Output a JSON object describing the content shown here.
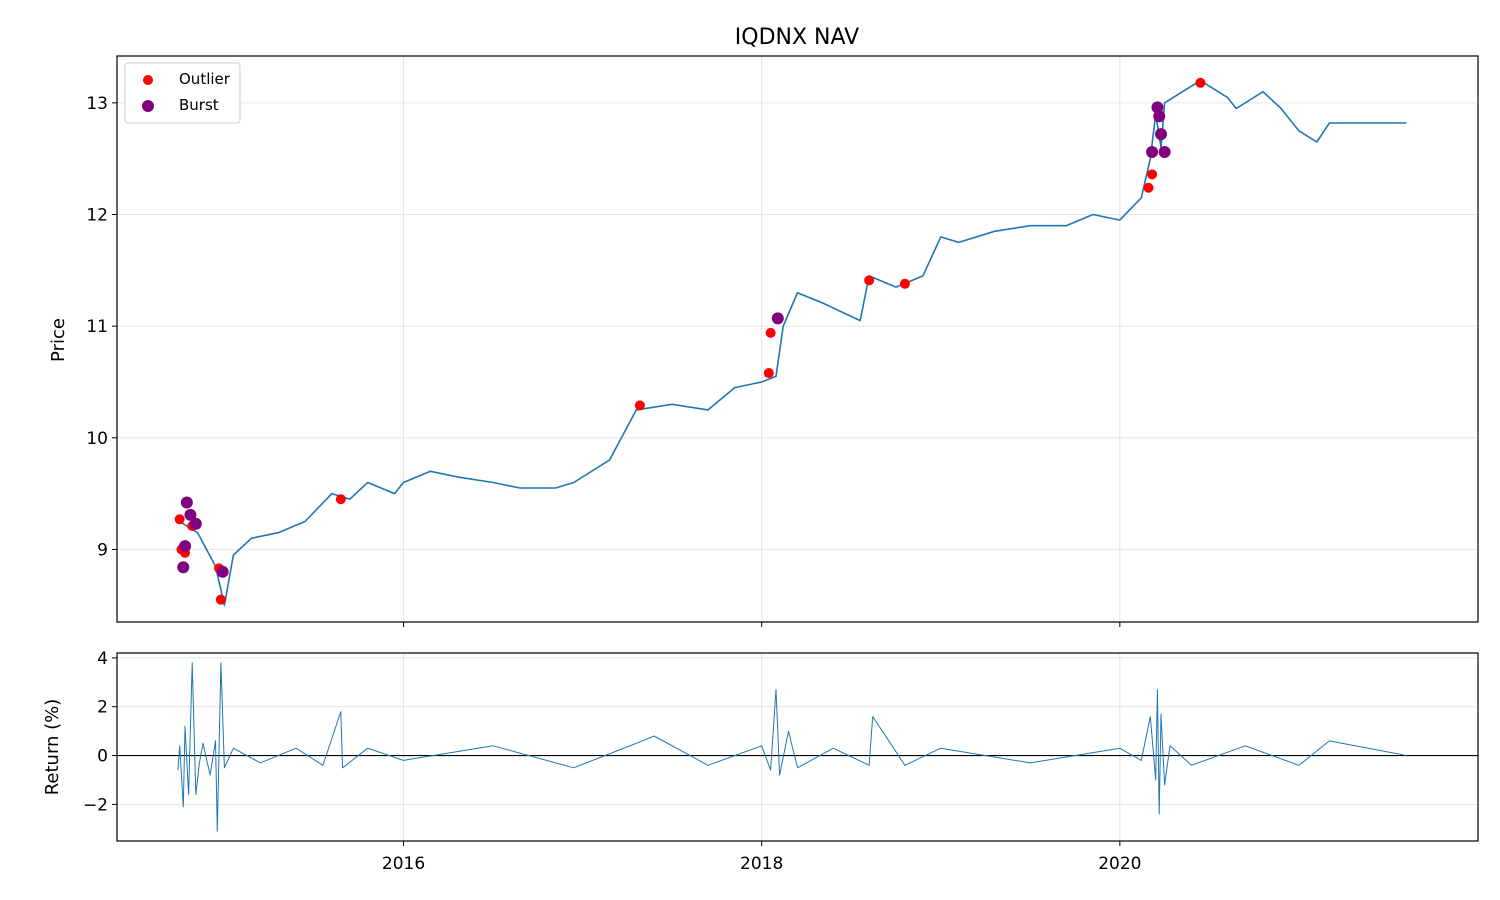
{
  "chart_data": [
    {
      "type": "line",
      "title": "IQDNX NAV",
      "xlabel": "",
      "ylabel": "Price",
      "xlim": [
        2014.4,
        2022.0
      ],
      "ylim": [
        8.35,
        13.42
      ],
      "grid": true,
      "legend_position": "top-left",
      "x_ticks": [
        2016,
        2018,
        2020
      ],
      "x_tick_labels": [
        "",
        "",
        ""
      ],
      "y_ticks": [
        9,
        10,
        11,
        12,
        13
      ],
      "y_tick_labels": [
        "9",
        "10",
        "11",
        "12",
        "13"
      ],
      "series": [
        {
          "name": "",
          "color": "#1f77b4",
          "x": [
            2014.75,
            2014.8,
            2014.85,
            2014.9,
            2014.95,
            2015.0,
            2015.05,
            2015.15,
            2015.3,
            2015.45,
            2015.6,
            2015.7,
            2015.8,
            2015.95,
            2016.0,
            2016.15,
            2016.3,
            2016.5,
            2016.65,
            2016.85,
            2016.95,
            2017.15,
            2017.3,
            2017.5,
            2017.7,
            2017.85,
            2018.0,
            2018.08,
            2018.12,
            2018.2,
            2018.35,
            2018.55,
            2018.6,
            2018.75,
            2018.9,
            2019.0,
            2019.1,
            2019.3,
            2019.5,
            2019.7,
            2019.85,
            2020.0,
            2020.12,
            2020.17,
            2020.2,
            2020.23,
            2020.25,
            2020.35,
            2020.45,
            2020.6,
            2020.65,
            2020.8,
            2020.9,
            2021.0,
            2021.1,
            2021.17,
            2021.3,
            2021.6
          ],
          "values": [
            9.25,
            9.2,
            9.15,
            9.0,
            8.85,
            8.5,
            8.95,
            9.1,
            9.15,
            9.25,
            9.5,
            9.45,
            9.6,
            9.5,
            9.6,
            9.7,
            9.65,
            9.6,
            9.55,
            9.55,
            9.6,
            9.8,
            10.25,
            10.3,
            10.25,
            10.45,
            10.5,
            10.55,
            11.0,
            11.3,
            11.2,
            11.05,
            11.45,
            11.35,
            11.45,
            11.8,
            11.75,
            11.85,
            11.9,
            11.9,
            12.0,
            11.95,
            12.15,
            12.5,
            12.9,
            12.6,
            13.0,
            13.1,
            13.2,
            13.05,
            12.95,
            13.1,
            12.95,
            12.75,
            12.65,
            12.82,
            12.82,
            12.82
          ]
        },
        {
          "name": "Outlier",
          "color": "#ff0000",
          "type": "scatter",
          "x": [
            2014.75,
            2014.76,
            2014.78,
            2014.82,
            2014.97,
            2014.98,
            2015.65,
            2017.32,
            2018.04,
            2018.05,
            2018.6,
            2018.8,
            2020.16,
            2020.18,
            2020.45
          ],
          "values": [
            9.27,
            9.0,
            8.97,
            9.21,
            8.83,
            8.55,
            9.45,
            10.29,
            10.58,
            10.94,
            11.41,
            11.38,
            12.24,
            12.36,
            13.18
          ]
        },
        {
          "name": "Burst",
          "color": "#800080",
          "type": "scatter",
          "x": [
            2014.77,
            2014.78,
            2014.79,
            2014.81,
            2014.84,
            2014.99,
            2018.09,
            2020.18,
            2020.21,
            2020.22,
            2020.23,
            2020.25
          ],
          "values": [
            8.84,
            9.03,
            9.42,
            9.31,
            9.23,
            8.8,
            11.07,
            12.56,
            12.96,
            12.88,
            12.72,
            12.56
          ]
        }
      ]
    },
    {
      "type": "line",
      "title": "",
      "xlabel": "",
      "ylabel": "Return (%)",
      "xlim": [
        2014.4,
        2022.0
      ],
      "ylim": [
        -3.5,
        4.2
      ],
      "grid": true,
      "x_ticks": [
        2016,
        2018,
        2020
      ],
      "x_tick_labels": [
        "2016",
        "2018",
        "2020"
      ],
      "y_ticks": [
        -2,
        0,
        2,
        4
      ],
      "y_tick_labels": [
        "−2",
        "0",
        "2",
        "4"
      ],
      "zero_line": true,
      "series": [
        {
          "name": "",
          "color": "#1f77b4",
          "x": [
            2014.74,
            2014.75,
            2014.77,
            2014.78,
            2014.8,
            2014.82,
            2014.84,
            2014.86,
            2014.88,
            2014.92,
            2014.95,
            2014.96,
            2014.98,
            2015.0,
            2015.05,
            2015.2,
            2015.4,
            2015.55,
            2015.65,
            2015.66,
            2015.8,
            2016.0,
            2016.5,
            2016.95,
            2017.3,
            2017.4,
            2017.7,
            2018.0,
            2018.05,
            2018.08,
            2018.1,
            2018.15,
            2018.2,
            2018.4,
            2018.6,
            2018.62,
            2018.8,
            2019.0,
            2019.5,
            2020.0,
            2020.12,
            2020.17,
            2020.2,
            2020.21,
            2020.22,
            2020.23,
            2020.25,
            2020.28,
            2020.4,
            2020.7,
            2021.0,
            2021.17,
            2021.6
          ],
          "values": [
            -0.6,
            0.4,
            -2.1,
            1.2,
            -1.6,
            3.8,
            -1.6,
            -0.3,
            0.5,
            -0.8,
            0.6,
            -3.1,
            3.8,
            -0.5,
            0.3,
            -0.3,
            0.3,
            -0.4,
            1.8,
            -0.5,
            0.3,
            -0.2,
            0.4,
            -0.5,
            0.5,
            0.8,
            -0.4,
            0.4,
            -0.6,
            2.7,
            -0.8,
            1.0,
            -0.5,
            0.3,
            -0.4,
            1.6,
            -0.4,
            0.3,
            -0.3,
            0.3,
            -0.2,
            1.6,
            -1.0,
            2.7,
            -2.4,
            1.7,
            -1.2,
            0.4,
            -0.4,
            0.4,
            -0.4,
            0.6,
            0.0
          ]
        }
      ]
    }
  ]
}
